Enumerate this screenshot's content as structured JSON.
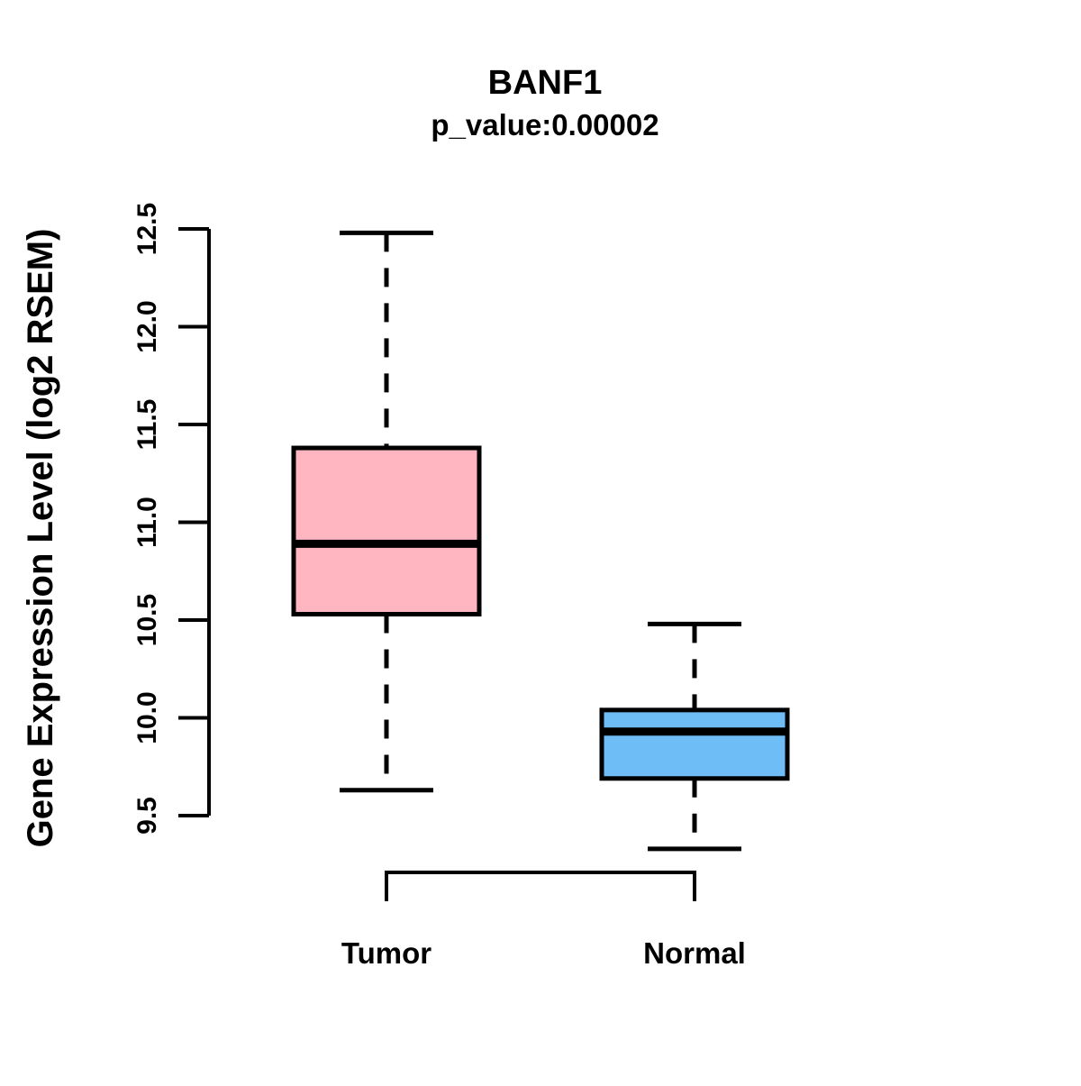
{
  "figure": {
    "background": "#FFFFFF",
    "stroke_color": "#000000"
  },
  "chart_data": {
    "type": "boxplot",
    "title": "BANF1",
    "subtitle": "p_value:0.00002",
    "ylabel": "Gene Expression Level (log2 RSEM)",
    "xlabel": "",
    "ylim": [
      9.5,
      12.5
    ],
    "yticks": [
      9.5,
      10.0,
      10.5,
      11.0,
      11.5,
      12.0,
      12.5
    ],
    "ytick_labels": [
      "9.5",
      "10.0",
      "10.5",
      "11.0",
      "11.5",
      "12.0",
      "12.5"
    ],
    "grid": false,
    "legend": "none",
    "categories": [
      "Tumor",
      "Normal"
    ],
    "series": [
      {
        "name": "Tumor",
        "fill_color": "#FFB6C1",
        "whisker_low": 9.63,
        "q1": 10.53,
        "median": 10.89,
        "q3": 11.38,
        "whisker_high": 12.48
      },
      {
        "name": "Normal",
        "fill_color": "#6FBDF6",
        "whisker_low": 9.33,
        "q1": 9.69,
        "median": 9.93,
        "q3": 10.04,
        "whisker_high": 10.48
      }
    ],
    "annotations": {
      "comparison_bracket": {
        "between": [
          "Tumor",
          "Normal"
        ],
        "open": "down"
      }
    }
  }
}
